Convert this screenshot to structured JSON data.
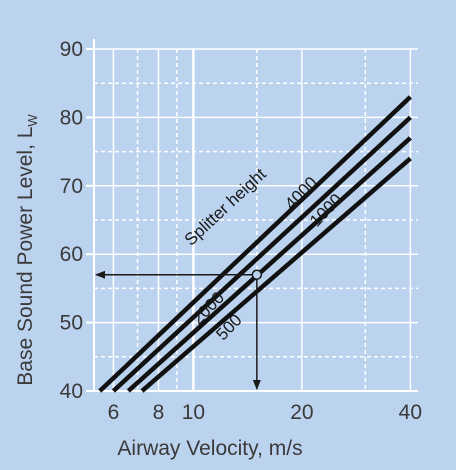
{
  "chart_data": {
    "type": "line",
    "title": "",
    "xlabel": "Airway Velocity, m/s",
    "ylabel": "Base Sound Power Level, L",
    "ylabel_subscript": "W",
    "x_scale": "log",
    "xlim": [
      5.3,
      42
    ],
    "ylim": [
      40,
      90
    ],
    "x_ticks": [
      6,
      8,
      10,
      20,
      40
    ],
    "x_tick_labels": [
      "6",
      "8",
      "10",
      "20",
      "40"
    ],
    "y_ticks": [
      40,
      50,
      60,
      70,
      80,
      90
    ],
    "y_tick_labels": [
      "40",
      "50",
      "60",
      "70",
      "80",
      "90"
    ],
    "x_minor_gridlines": [
      7,
      9,
      15,
      30
    ],
    "y_minor_gridlines": [
      45,
      55,
      65,
      75,
      85
    ],
    "legend_title": "Splitter height",
    "series": [
      {
        "name": "4000",
        "points": [
          [
            5.5,
            40
          ],
          [
            40,
            83
          ]
        ]
      },
      {
        "name": "2000",
        "points": [
          [
            6.0,
            40
          ],
          [
            40,
            80
          ]
        ]
      },
      {
        "name": "1000",
        "points": [
          [
            6.6,
            40
          ],
          [
            40,
            77
          ]
        ]
      },
      {
        "name": "500",
        "points": [
          [
            7.2,
            40
          ],
          [
            40,
            74
          ]
        ]
      }
    ],
    "example": {
      "x": 15,
      "y": 57,
      "note": "arrows from operating point to each axis"
    }
  }
}
